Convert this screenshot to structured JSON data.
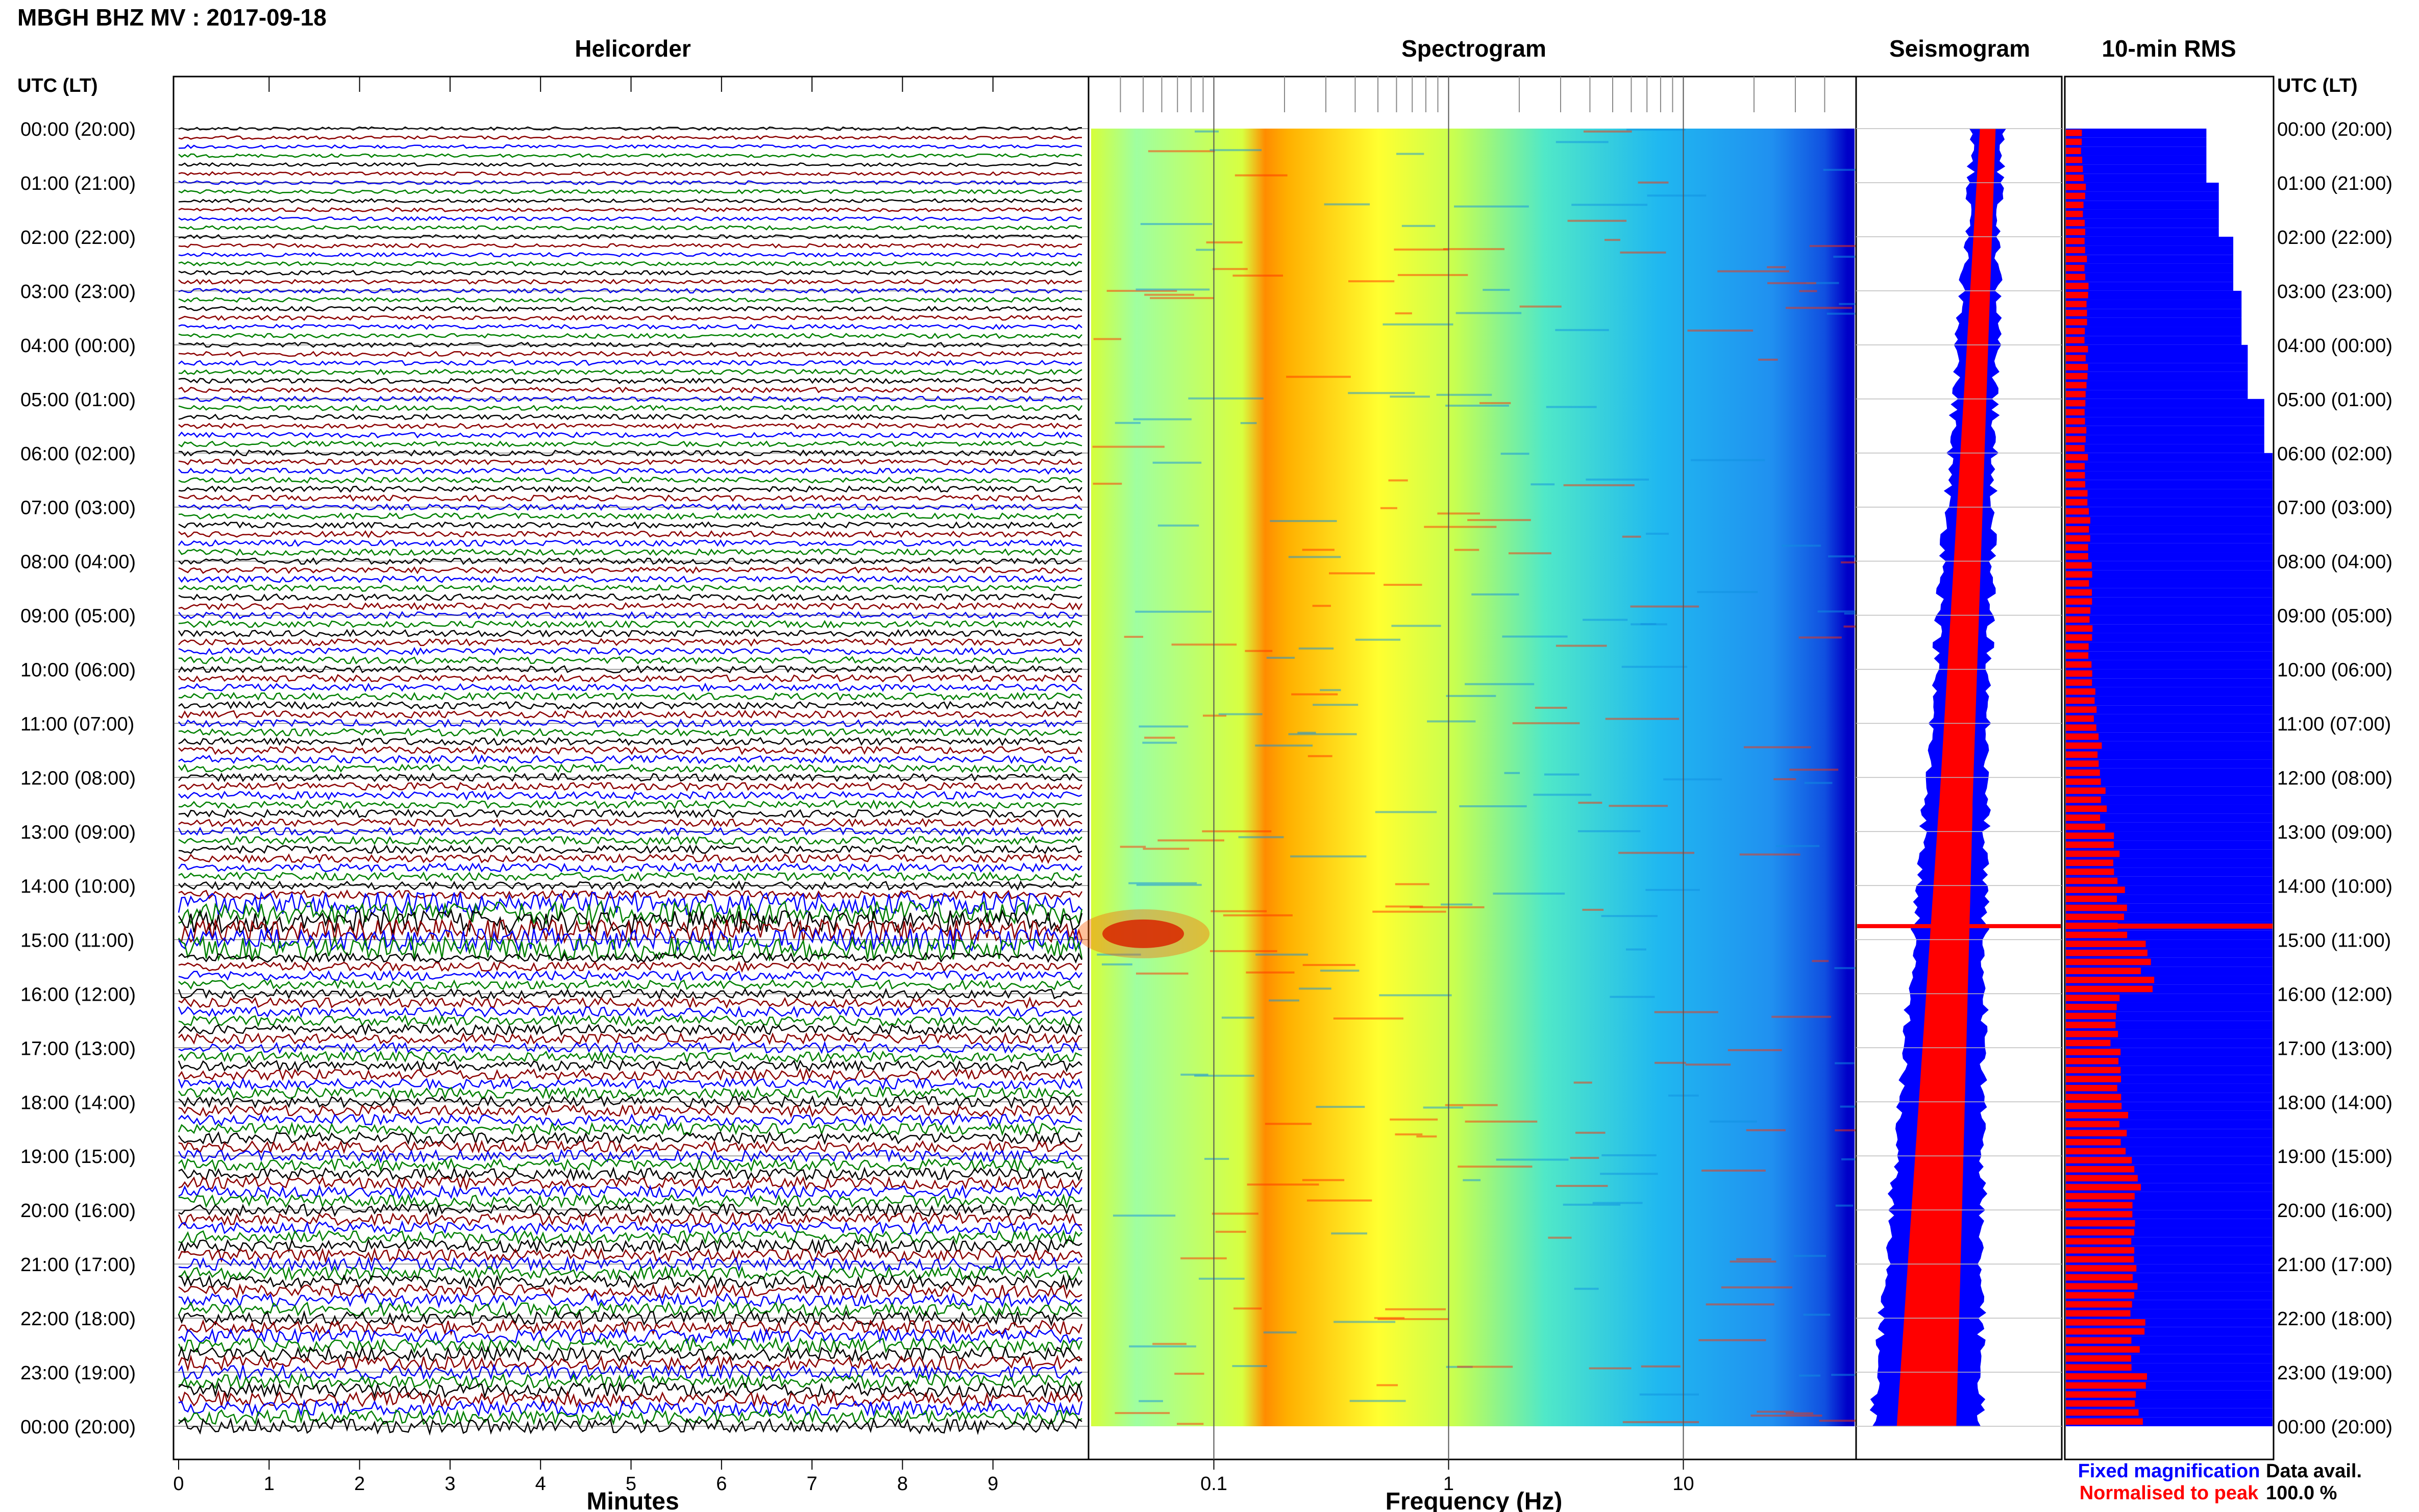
{
  "header": {
    "title": "MBGH BHZ MV : 2017-09-18",
    "utc_left": "UTC (LT)",
    "utc_right": "UTC (LT)"
  },
  "panels": {
    "helicorder": "Helicorder",
    "spectrogram": "Spectrogram",
    "seismogram": "Seismogram",
    "rms": "10-min RMS"
  },
  "time_labels": [
    "00:00 (20:00)",
    "01:00 (21:00)",
    "02:00 (22:00)",
    "03:00 (23:00)",
    "04:00 (00:00)",
    "05:00 (01:00)",
    "06:00 (02:00)",
    "07:00 (03:00)",
    "08:00 (04:00)",
    "09:00 (05:00)",
    "10:00 (06:00)",
    "11:00 (07:00)",
    "12:00 (08:00)",
    "13:00 (09:00)",
    "14:00 (10:00)",
    "15:00 (11:00)",
    "16:00 (12:00)",
    "17:00 (13:00)",
    "18:00 (14:00)",
    "19:00 (15:00)",
    "20:00 (16:00)",
    "21:00 (17:00)",
    "22:00 (18:00)",
    "23:00 (19:00)",
    "00:00 (20:00)"
  ],
  "helicorder_axis": {
    "xlabel": "Minutes",
    "ticks": [
      "0",
      "1",
      "2",
      "3",
      "4",
      "5",
      "6",
      "7",
      "8",
      "9"
    ]
  },
  "spectrogram_axis": {
    "xlabel": "Frequency (Hz)",
    "ticks": [
      "0.1",
      "1",
      "10"
    ]
  },
  "legend": {
    "fixed": "Fixed magnification",
    "normalised": "Normalised to peak",
    "colors": {
      "fixed": "#0000ff",
      "normalised": "#ff0000"
    }
  },
  "availability": {
    "label": "Data avail.",
    "value": "100.0 %"
  },
  "chart_data": {
    "type": "heatmap",
    "helicorder_colors": [
      "#000000",
      "#8b0000",
      "#0000ff",
      "#008000"
    ],
    "spectrogram_freq_range_hz": [
      0.03,
      50
    ],
    "spectrogram_log_scale": true,
    "helicorder_minutes_range": [
      0,
      10
    ],
    "rms_fixed_hourly": [
      0.68,
      0.74,
      0.81,
      0.85,
      0.88,
      0.96,
      1.0,
      1.0,
      1.0,
      1.0,
      1.0,
      1.0,
      1.0,
      1.0,
      1.0,
      1.0,
      1.0,
      1.0,
      1.0,
      1.0,
      1.0,
      1.0,
      1.0,
      1.0
    ],
    "rms_normalised_hourly": [
      0.08,
      0.09,
      0.1,
      0.1,
      0.1,
      0.1,
      0.1,
      0.11,
      0.12,
      0.12,
      0.14,
      0.16,
      0.18,
      0.24,
      0.27,
      0.4,
      0.24,
      0.25,
      0.28,
      0.34,
      0.32,
      0.33,
      0.35,
      0.37
    ],
    "event_peak_time_utc": "14:45"
  }
}
